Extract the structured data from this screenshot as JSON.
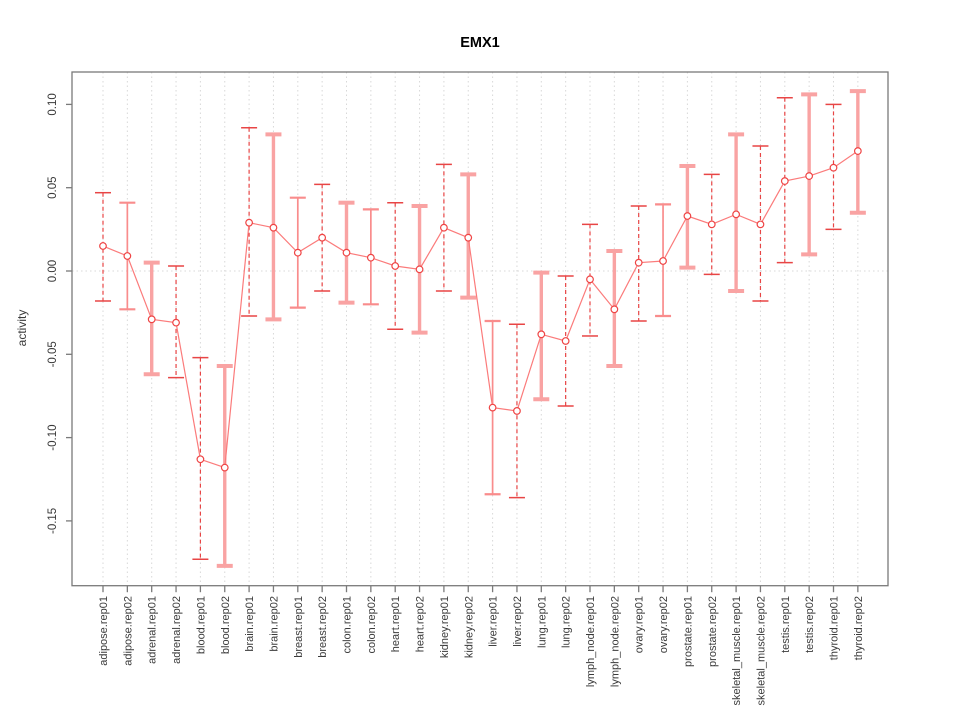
{
  "page": {
    "background": "#ffffff"
  },
  "chart_data": {
    "type": "line",
    "title": "EMX1",
    "xlabel": "",
    "ylabel": "activity",
    "ylim": [
      -0.19,
      0.12
    ],
    "yticks": [
      0.1,
      0.05,
      0.0,
      -0.05,
      -0.1,
      -0.15
    ],
    "ytick_labels": [
      "0.10",
      "0.05",
      "0.00",
      "-0.05",
      "-0.10",
      "-0.15"
    ],
    "grid": {
      "vertical_dotted_per_category": true,
      "horizontal_dotted_zero_line": true
    },
    "legend_position": "none",
    "categories": [
      "adipose.rep01",
      "adipose.rep02",
      "adrenal.rep01",
      "adrenal.rep02",
      "blood.rep01",
      "blood.rep02",
      "brain.rep01",
      "brain.rep02",
      "breast.rep01",
      "breast.rep02",
      "colon.rep01",
      "colon.rep02",
      "heart.rep01",
      "heart.rep02",
      "kidney.rep01",
      "kidney.rep02",
      "liver.rep01",
      "liver.rep02",
      "lung.rep01",
      "lung.rep02",
      "lymph_node.rep01",
      "lymph_node.rep02",
      "ovary.rep01",
      "ovary.rep02",
      "prostate.rep01",
      "prostate.rep02",
      "skeletal_muscle.rep01",
      "skeletal_muscle.rep02",
      "testis.rep01",
      "testis.rep02",
      "thyroid.rep01",
      "thyroid.rep02"
    ],
    "series": [
      {
        "name": "activity",
        "values": [
          0.015,
          0.009,
          -0.029,
          -0.031,
          -0.113,
          -0.118,
          0.029,
          0.026,
          0.011,
          0.02,
          0.011,
          0.008,
          0.003,
          0.001,
          0.026,
          0.02,
          -0.082,
          -0.084,
          -0.038,
          -0.042,
          -0.005,
          -0.023,
          0.005,
          0.006,
          0.033,
          0.028,
          0.034,
          0.028,
          0.054,
          0.057,
          0.062,
          0.072
        ],
        "error_upper": [
          0.047,
          0.041,
          0.005,
          0.003,
          -0.052,
          -0.057,
          0.086,
          0.082,
          0.044,
          0.052,
          0.041,
          0.037,
          0.041,
          0.039,
          0.064,
          0.058,
          -0.03,
          -0.032,
          -0.001,
          -0.003,
          0.028,
          0.012,
          0.039,
          0.04,
          0.063,
          0.058,
          0.082,
          0.075,
          0.104,
          0.106,
          0.1,
          0.108
        ],
        "error_lower": [
          -0.018,
          -0.023,
          -0.062,
          -0.064,
          -0.173,
          -0.177,
          -0.027,
          -0.029,
          -0.022,
          -0.012,
          -0.019,
          -0.02,
          -0.035,
          -0.037,
          -0.012,
          -0.016,
          -0.134,
          -0.136,
          -0.077,
          -0.081,
          -0.039,
          -0.057,
          -0.03,
          -0.027,
          0.002,
          -0.002,
          -0.012,
          -0.018,
          0.005,
          0.01,
          0.025,
          0.035
        ]
      }
    ],
    "error_bar_styles": [
      "dashed",
      "solid-thin",
      "solid-thick",
      "dashed",
      "dashed",
      "solid-thick",
      "dashed",
      "solid-thick",
      "solid-thin",
      "dashed",
      "solid-thick",
      "solid-thin",
      "dashed",
      "solid-thick",
      "dashed",
      "solid-thick",
      "solid-thin",
      "dashed",
      "solid-thick",
      "dashed",
      "dashed",
      "solid-thick",
      "dashed",
      "solid-thin",
      "solid-thick",
      "dashed",
      "solid-thick",
      "dashed",
      "dashed",
      "solid-thick",
      "dashed",
      "solid-thick"
    ],
    "colors": {
      "point_stroke": "#ef4444",
      "point_fill": "#ffffff",
      "connect_line": "#fb7b7b",
      "error_dashed": "#e84545",
      "error_solid_thin": "#f98c8c",
      "error_solid_thick": "#f9a3a3",
      "gridline": "#d8d8d8",
      "axis_box": "#7a7a7a",
      "tick_label": "#3a3a3a",
      "title": "#000000"
    }
  }
}
